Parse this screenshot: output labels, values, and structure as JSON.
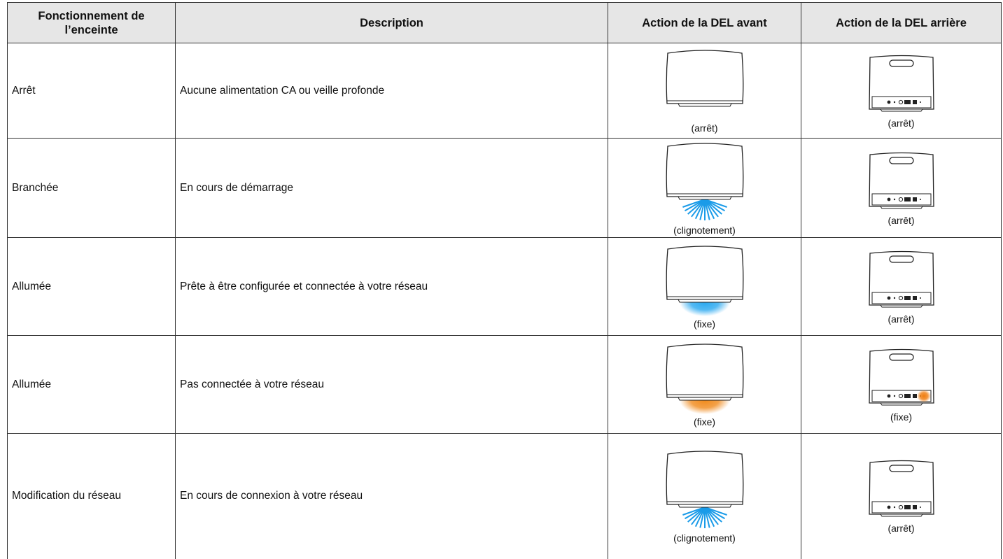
{
  "table": {
    "header": [
      "Fonctionnement de l’enceinte",
      "Description",
      "Action de la DEL avant",
      "Action de la DEL arrière"
    ],
    "rows": [
      [
        "Arrêt",
        "Aucune alimentation CA ou veille profonde",
        "(arrêt)",
        "(arrêt)"
      ],
      [
        "Branchée",
        "En cours de démarrage",
        "(clignotement)",
        "(arrêt)"
      ],
      [
        "Allumée",
        "Prête à être configurée et connectée à votre réseau",
        "(fixe)",
        "(arrêt)"
      ],
      [
        "Allumée",
        "Pas connectée à votre réseau",
        "(fixe)",
        "(fixe)"
      ],
      [
        "Modification du réseau",
        "En cours de connexion à votre réseau",
        "(clignotement)",
        "(arrêt)"
      ]
    ]
  }
}
